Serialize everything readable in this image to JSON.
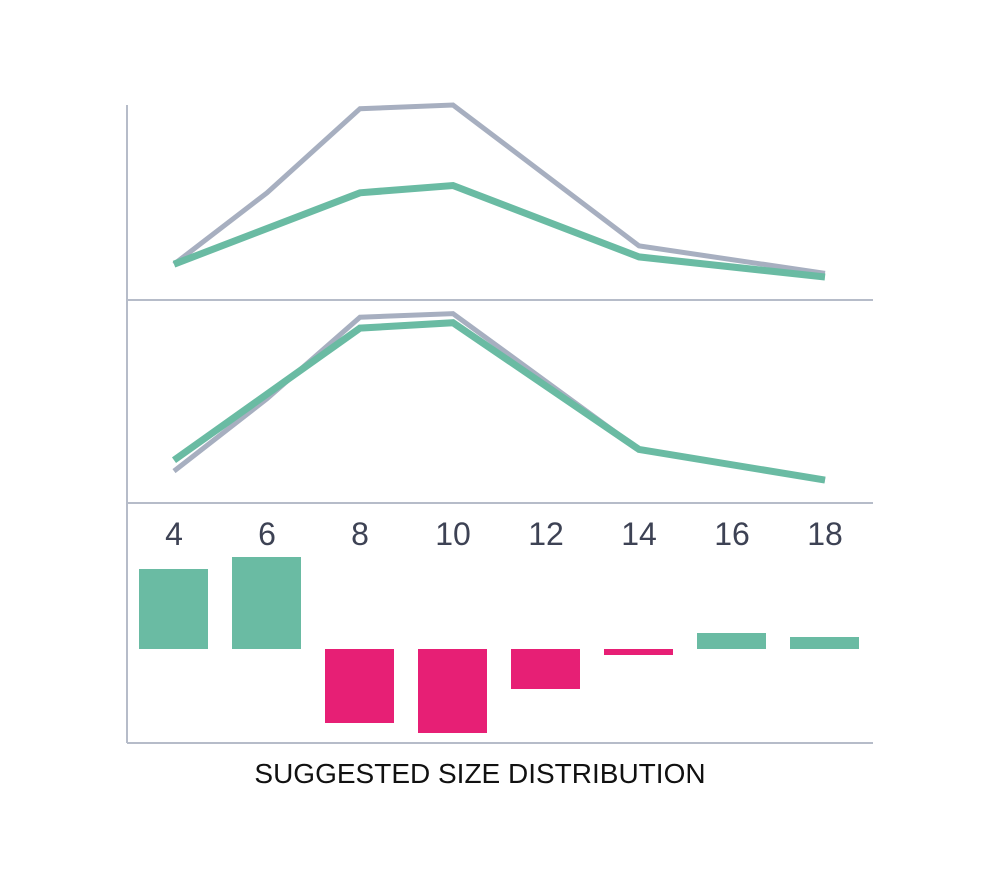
{
  "caption": "SUGGESTED SIZE DISTRIBUTION",
  "colors": {
    "gray_series": "#a7afc0",
    "green_series": "#6abba3",
    "positive_bar": "#6abba3",
    "negative_bar": "#e71f75",
    "axis": "#b6bcc9",
    "tick_text": "#3d4254"
  },
  "chart_data": [
    {
      "type": "line",
      "x": [
        "4",
        "6",
        "8",
        "10",
        "12",
        "14",
        "16",
        "18"
      ],
      "ylim": [
        0,
        100
      ],
      "series": [
        {
          "color": "gray",
          "values": [
            13,
            52,
            98,
            100,
            null,
            23,
            null,
            8
          ]
        },
        {
          "color": "green",
          "values": [
            13,
            null,
            52,
            56,
            null,
            17,
            null,
            6
          ]
        }
      ]
    },
    {
      "type": "line",
      "x": [
        "4",
        "6",
        "8",
        "10",
        "12",
        "14",
        "16",
        "18"
      ],
      "ylim": [
        0,
        100
      ],
      "series": [
        {
          "color": "gray",
          "values": [
            11,
            51,
            96,
            98,
            null,
            23,
            null,
            6
          ]
        },
        {
          "color": "green",
          "values": [
            17,
            null,
            90,
            93,
            null,
            23,
            null,
            6
          ]
        }
      ]
    },
    {
      "type": "bar",
      "categories": [
        "4",
        "6",
        "8",
        "10",
        "12",
        "14",
        "16",
        "18"
      ],
      "values": [
        40,
        46,
        -37,
        -42,
        -20,
        -3,
        8,
        6
      ],
      "ylim": [
        -48,
        48
      ]
    }
  ]
}
